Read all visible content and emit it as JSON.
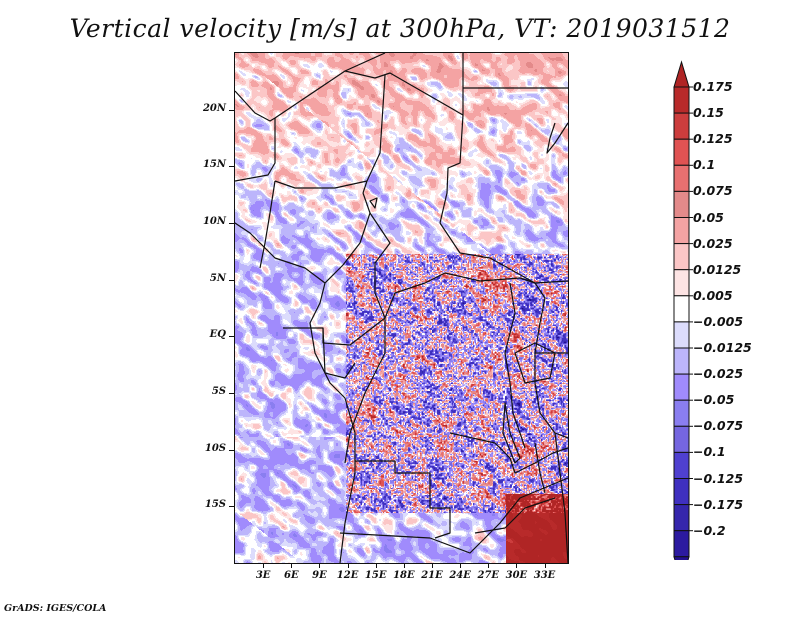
{
  "chart_data": {
    "type": "heatmap",
    "title": "Vertical velocity [m/s] at 300hPa, VT: 2019031512",
    "variable": "Vertical velocity",
    "units": "m/s",
    "level": "300hPa",
    "valid_time": "2019031512",
    "xlabel": "",
    "ylabel": "",
    "x_range_deg": [
      0,
      35.5
    ],
    "y_range_deg": [
      -20,
      25
    ],
    "x_ticks": [
      "3E",
      "6E",
      "9E",
      "12E",
      "15E",
      "18E",
      "21E",
      "24E",
      "27E",
      "30E",
      "33E"
    ],
    "x_tick_values": [
      3,
      6,
      9,
      12,
      15,
      18,
      21,
      24,
      27,
      30,
      33
    ],
    "y_ticks": [
      "20N",
      "15N",
      "10N",
      "5N",
      "EQ",
      "5S",
      "10S",
      "15S"
    ],
    "y_tick_values": [
      20,
      15,
      10,
      5,
      0,
      -5,
      -10,
      -15
    ],
    "colorbar": {
      "levels": [
        0.175,
        0.15,
        0.125,
        0.1,
        0.075,
        0.05,
        0.025,
        0.0125,
        0.005,
        -0.005,
        -0.0125,
        -0.025,
        -0.05,
        -0.075,
        -0.1,
        -0.125,
        -0.175,
        -0.2
      ],
      "labels": [
        "0.175",
        "0.15",
        "0.125",
        "0.1",
        "0.075",
        "0.05",
        "0.025",
        "0.0125",
        "0.005",
        "−0.005",
        "−0.0125",
        "−0.025",
        "−0.05",
        "−0.075",
        "−0.1",
        "−0.125",
        "−0.175",
        "−0.2"
      ],
      "colors_top_to_bottom": [
        "#b02525",
        "#b82a2a",
        "#cc3d3d",
        "#e05353",
        "#e87070",
        "#e38a8a",
        "#f4a3a3",
        "#fbc6c6",
        "#fde4e4",
        "#ffffff",
        "#dcdcfc",
        "#bcb5fb",
        "#a08bfc",
        "#8a7ef0",
        "#7566e0",
        "#4f40d0",
        "#3f30c0",
        "#3526ac",
        "#2c1aa0",
        "#24108f"
      ],
      "extend": "both",
      "upper_arrow_color": "#b02525",
      "lower_arrow_color": "#24108f"
    },
    "grid": false,
    "legend_placement": "right",
    "map_region": "Central Africa"
  },
  "footer": {
    "credit": "GrADS: IGES/COLA"
  }
}
